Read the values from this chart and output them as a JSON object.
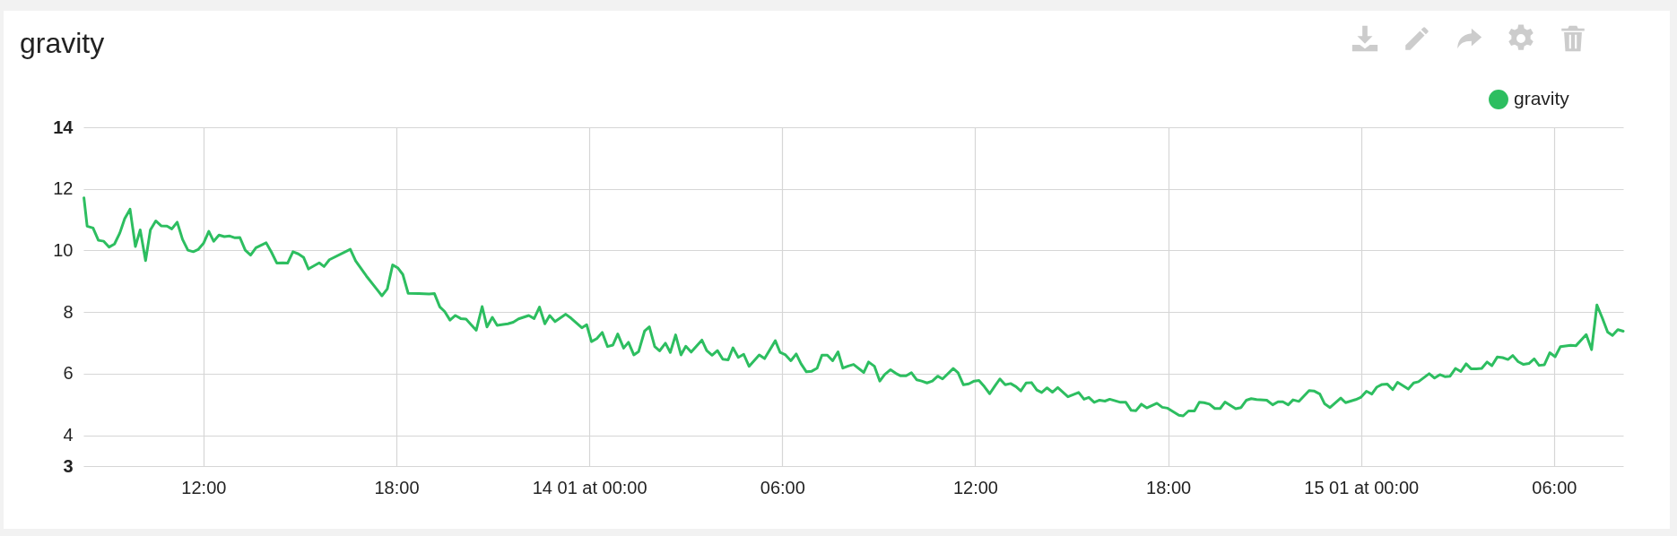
{
  "chart_data": {
    "type": "line",
    "title": "gravity",
    "legend": "top right",
    "grid": true,
    "marker": "none",
    "line_style": "solid",
    "xlim": [
      "--01-13T08:16",
      "--01-15T08:09"
    ],
    "ylim": [
      3,
      14
    ],
    "xticks": [
      {
        "value": "--01-13T12:00",
        "label": "12:00"
      },
      {
        "value": "--01-13T18:00",
        "label": "18:00"
      },
      {
        "value": "--01-14T00:00",
        "label": "14 01 at 00:00"
      },
      {
        "value": "--01-14T06:00",
        "label": "06:00"
      },
      {
        "value": "--01-14T12:00",
        "label": "12:00"
      },
      {
        "value": "--01-14T18:00",
        "label": "18:00"
      },
      {
        "value": "--01-15T00:00",
        "label": "15 01 at 00:00"
      },
      {
        "value": "--01-15T06:00",
        "label": "06:00"
      }
    ],
    "yticks": [
      3,
      4,
      6,
      8,
      10,
      12,
      14
    ],
    "series": [
      {
        "name": "gravity",
        "color": "#2dbe60",
        "x": [
          "--01-13T08:17",
          "--01-13T08:23",
          "--01-13T08:34",
          "--01-13T08:44",
          "--01-13T08:54",
          "--01-13T09:04",
          "--01-13T09:14",
          "--01-13T09:24",
          "--01-13T09:33",
          "--01-13T09:43",
          "--01-13T09:53",
          "--01-13T10:02",
          "--01-13T10:12",
          "--01-13T10:21",
          "--01-13T10:31",
          "--01-13T10:41",
          "--01-13T10:52",
          "--01-13T11:01",
          "--01-13T11:11",
          "--01-13T11:21",
          "--01-13T11:31",
          "--01-13T11:41",
          "--01-13T11:50",
          "--01-13T12:00",
          "--01-13T12:10",
          "--01-13T12:19",
          "--01-13T12:29",
          "--01-13T12:39",
          "--01-13T12:49",
          "--01-13T12:59",
          "--01-13T13:08",
          "--01-13T13:18",
          "--01-13T13:28",
          "--01-13T13:38",
          "--01-13T13:57",
          "--01-13T14:07",
          "--01-13T14:17",
          "--01-13T14:28",
          "--01-13T14:37",
          "--01-13T14:47",
          "--01-13T14:57",
          "--01-13T15:07",
          "--01-13T15:16",
          "--01-13T15:36",
          "--01-13T15:45",
          "--01-13T15:55",
          "--01-13T16:34",
          "--01-13T16:44",
          "--01-13T17:04",
          "--01-13T17:23",
          "--01-13T17:33",
          "--01-13T17:43",
          "--01-13T17:53",
          "--01-13T18:03",
          "--01-13T18:12",
          "--01-13T18:22",
          "--01-13T18:42",
          "--01-13T19:01",
          "--01-13T19:11",
          "--01-13T19:21",
          "--01-13T19:30",
          "--01-13T19:40",
          "--01-13T19:50",
          "--01-13T20:00",
          "--01-13T20:10",
          "--01-13T20:19",
          "--01-13T20:29",
          "--01-13T20:40",
          "--01-13T20:49",
          "--01-13T20:59",
          "--01-13T21:08",
          "--01-13T21:19",
          "--01-13T21:28",
          "--01-13T21:38",
          "--01-13T21:48",
          "--01-13T22:07",
          "--01-13T22:17",
          "--01-13T22:27",
          "--01-13T22:37",
          "--01-13T22:46",
          "--01-13T22:56",
          "--01-13T23:16",
          "--01-13T23:26",
          "--01-13T23:46",
          "--01-13T23:55",
          "--01-14T00:04",
          "--01-14T00:14",
          "--01-14T00:24",
          "--01-14T00:34",
          "--01-14T00:44",
          "--01-14T00:53",
          "--01-14T01:04",
          "--01-14T01:13",
          "--01-14T01:23",
          "--01-14T01:32",
          "--01-14T01:43",
          "--01-14T01:52",
          "--01-14T02:02",
          "--01-14T02:11",
          "--01-14T02:22",
          "--01-14T02:31",
          "--01-14T02:41",
          "--01-14T02:51",
          "--01-14T03:00",
          "--01-14T03:10",
          "--01-14T03:30",
          "--01-14T03:39",
          "--01-14T03:49",
          "--01-14T03:59",
          "--01-14T04:09",
          "--01-14T04:19",
          "--01-14T04:28",
          "--01-14T04:38",
          "--01-14T04:48",
          "--01-14T04:58",
          "--01-14T05:17",
          "--01-14T05:27",
          "--01-14T05:47",
          "--01-14T05:56",
          "--01-14T06:06",
          "--01-14T06:16",
          "--01-14T06:26",
          "--01-14T06:35",
          "--01-14T06:45",
          "--01-14T06:55",
          "--01-14T07:05",
          "--01-14T07:14",
          "--01-14T07:24",
          "--01-14T07:34",
          "--01-14T07:44",
          "--01-14T07:53",
          "--01-14T08:03",
          "--01-14T08:13",
          "--01-14T08:32",
          "--01-14T08:41",
          "--01-14T08:52",
          "--01-14T09:02",
          "--01-14T09:11",
          "--01-14T09:22",
          "--01-14T09:32",
          "--01-14T09:41",
          "--01-14T09:51",
          "--01-14T10:01",
          "--01-14T10:11",
          "--01-14T10:20",
          "--01-14T10:30",
          "--01-14T10:40",
          "--01-14T10:50",
          "--01-14T10:59",
          "--01-14T11:19",
          "--01-14T11:28",
          "--01-14T11:38",
          "--01-14T11:48",
          "--01-14T11:58",
          "--01-14T12:07",
          "--01-14T12:17",
          "--01-14T12:27",
          "--01-14T12:37",
          "--01-14T12:46",
          "--01-14T12:56",
          "--01-14T13:06",
          "--01-14T13:16",
          "--01-14T13:25",
          "--01-14T13:35",
          "--01-14T13:45",
          "--01-14T13:55",
          "--01-14T14:04",
          "--01-14T14:14",
          "--01-14T14:24",
          "--01-14T14:34",
          "--01-14T14:53",
          "--01-14T15:13",
          "--01-14T15:23",
          "--01-14T15:32",
          "--01-14T15:42",
          "--01-14T15:52",
          "--01-14T16:02",
          "--01-14T16:11",
          "--01-14T16:31",
          "--01-14T16:41",
          "--01-14T16:51",
          "--01-14T17:00",
          "--01-14T17:10",
          "--01-14T17:20",
          "--01-14T17:39",
          "--01-14T17:49",
          "--01-14T17:59",
          "--01-14T18:20",
          "--01-14T18:28",
          "--01-14T18:38",
          "--01-14T18:49",
          "--01-14T18:58",
          "--01-14T19:07",
          "--01-14T19:17",
          "--01-14T19:27",
          "--01-14T19:37",
          "--01-14T19:46",
          "--01-14T20:06",
          "--01-14T20:16",
          "--01-14T20:26",
          "--01-14T20:35",
          "--01-14T20:45",
          "--01-14T21:04",
          "--01-14T21:15",
          "--01-14T21:25",
          "--01-14T21:34",
          "--01-14T21:44",
          "--01-14T21:53",
          "--01-14T22:04",
          "--01-14T22:23",
          "--01-14T22:32",
          "--01-14T22:43",
          "--01-14T22:52",
          "--01-14T23:02",
          "--01-14T23:22",
          "--01-14T23:31",
          "--01-14T23:50",
          "--01-15T00:00",
          "--01-15T00:10",
          "--01-15T00:20",
          "--01-15T00:29",
          "--01-15T00:39",
          "--01-15T00:49",
          "--01-15T00:59",
          "--01-15T01:08",
          "--01-15T01:28",
          "--01-15T01:38",
          "--01-15T01:47",
          "--01-15T02:07",
          "--01-15T02:17",
          "--01-15T02:27",
          "--01-15T02:37",
          "--01-15T02:46",
          "--01-15T02:56",
          "--01-15T03:06",
          "--01-15T03:16",
          "--01-15T03:25",
          "--01-15T03:35",
          "--01-15T03:45",
          "--01-15T03:55",
          "--01-15T04:04",
          "--01-15T04:14",
          "--01-15T04:24",
          "--01-15T04:34",
          "--01-15T04:43",
          "--01-15T04:53",
          "--01-15T05:03",
          "--01-15T05:13",
          "--01-15T05:23",
          "--01-15T05:32",
          "--01-15T05:42",
          "--01-15T05:52",
          "--01-15T06:02",
          "--01-15T06:12",
          "--01-15T06:31",
          "--01-15T06:41",
          "--01-15T07:00",
          "--01-15T07:10",
          "--01-15T07:20",
          "--01-15T07:30",
          "--01-15T07:40",
          "--01-15T07:49",
          "--01-15T07:59",
          "--01-15T08:09"
        ],
        "values": [
          11.71,
          10.79,
          10.73,
          10.33,
          10.3,
          10.11,
          10.21,
          10.57,
          11.03,
          11.34,
          10.13,
          10.67,
          9.67,
          10.67,
          10.96,
          10.8,
          10.79,
          10.7,
          10.92,
          10.36,
          10.01,
          9.96,
          10.03,
          10.23,
          10.62,
          10.3,
          10.5,
          10.45,
          10.47,
          10.41,
          10.42,
          10.01,
          9.85,
          10.09,
          10.25,
          9.94,
          9.59,
          9.6,
          9.59,
          9.96,
          9.89,
          9.77,
          9.4,
          9.6,
          9.48,
          9.7,
          10.04,
          9.66,
          9.17,
          8.75,
          8.53,
          8.75,
          9.53,
          9.43,
          9.22,
          8.61,
          8.6,
          8.59,
          8.6,
          8.17,
          8.02,
          7.74,
          7.89,
          7.79,
          7.77,
          7.6,
          7.41,
          8.18,
          7.52,
          7.83,
          7.57,
          7.6,
          7.62,
          7.67,
          7.78,
          7.89,
          7.79,
          8.16,
          7.62,
          7.89,
          7.69,
          7.93,
          7.8,
          7.49,
          7.59,
          7.04,
          7.14,
          7.34,
          6.88,
          6.93,
          7.29,
          6.83,
          7.02,
          6.61,
          6.72,
          7.38,
          7.52,
          6.88,
          6.74,
          6.99,
          6.69,
          7.26,
          6.61,
          6.89,
          6.7,
          7.09,
          6.75,
          6.6,
          6.75,
          6.47,
          6.45,
          6.84,
          6.53,
          6.63,
          6.24,
          6.61,
          6.49,
          7.07,
          6.69,
          6.61,
          6.42,
          6.64,
          6.32,
          6.06,
          6.08,
          6.18,
          6.6,
          6.6,
          6.42,
          6.71,
          6.18,
          6.25,
          6.3,
          6.04,
          6.38,
          6.24,
          5.76,
          5.97,
          6.13,
          6.01,
          5.93,
          5.93,
          6.03,
          5.8,
          5.76,
          5.7,
          5.76,
          5.92,
          5.83,
          6.17,
          6.03,
          5.64,
          5.67,
          5.76,
          5.78,
          5.58,
          5.35,
          5.61,
          5.83,
          5.64,
          5.68,
          5.58,
          5.44,
          5.7,
          5.71,
          5.47,
          5.39,
          5.54,
          5.4,
          5.55,
          5.25,
          5.39,
          5.17,
          5.23,
          5.07,
          5.14,
          5.11,
          5.17,
          5.07,
          5.07,
          4.81,
          4.8,
          5.01,
          4.89,
          5.04,
          4.91,
          4.88,
          4.65,
          4.63,
          4.79,
          4.79,
          5.07,
          5.06,
          5.01,
          4.87,
          4.87,
          5.08,
          4.86,
          4.9,
          5.14,
          5.19,
          5.16,
          5.14,
          4.99,
          5.09,
          5.09,
          4.99,
          5.15,
          5.1,
          5.45,
          5.44,
          5.34,
          5.02,
          4.9,
          5.21,
          5.06,
          5.16,
          5.24,
          5.43,
          5.34,
          5.56,
          5.65,
          5.66,
          5.48,
          5.72,
          5.5,
          5.7,
          5.74,
          6,
          5.86,
          5.97,
          5.9,
          5.92,
          6.17,
          6.07,
          6.32,
          6.16,
          6.16,
          6.17,
          6.38,
          6.26,
          6.54,
          6.52,
          6.46,
          6.59,
          6.39,
          6.3,
          6.33,
          6.48,
          6.27,
          6.29,
          6.68,
          6.55,
          6.88,
          6.92,
          6.91,
          7.27,
          6.78,
          8.23,
          7.81,
          7.35,
          7.24,
          7.43,
          7.38
        ]
      }
    ]
  }
}
